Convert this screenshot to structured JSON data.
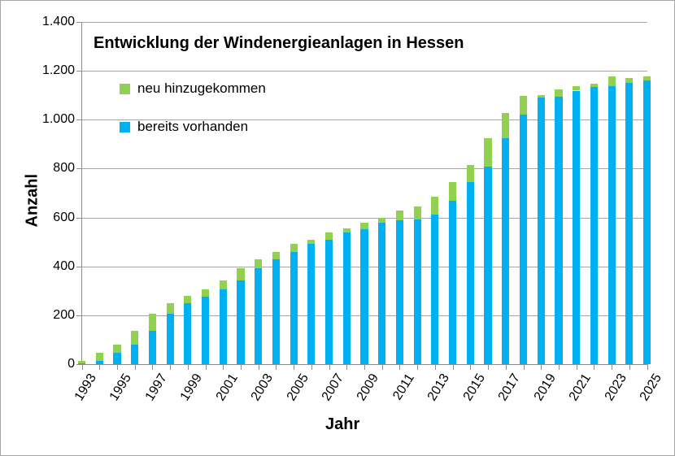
{
  "title": "Entwicklung der Windenergieanlagen in Hessen",
  "legend": [
    {
      "label": "neu hinzugekommen",
      "color": "#92D050"
    },
    {
      "label": "bereits vorhanden",
      "color": "#00B0F0"
    }
  ],
  "colors": {
    "grid": "#a6a6a6",
    "axis": "#8c8c8c",
    "text": "#000000",
    "frame_border": "#a6a6a6",
    "green": "#92D050",
    "blue": "#00B0F0"
  },
  "chart_data": {
    "type": "bar",
    "stacked": true,
    "title": "Entwicklung der Windenergieanlagen in Hessen",
    "xlabel": "Jahr",
    "ylabel": "Anzahl",
    "ylim": [
      0,
      1400
    ],
    "ytick_step": 200,
    "ytick_labels": [
      "0",
      "200",
      "400",
      "600",
      "800",
      "1.000",
      "1.200",
      "1.400"
    ],
    "grid": true,
    "legend_position": "upper-left-inside",
    "xtick_label_interval": 2,
    "categories": [
      1993,
      1994,
      1995,
      1996,
      1997,
      1998,
      1999,
      2000,
      2001,
      2002,
      2003,
      2004,
      2005,
      2006,
      2007,
      2008,
      2009,
      2010,
      2011,
      2012,
      2013,
      2014,
      2015,
      2016,
      2017,
      2018,
      2019,
      2020,
      2021,
      2022,
      2023,
      2024,
      2025
    ],
    "series": [
      {
        "name": "bereits vorhanden",
        "color": "#00B0F0",
        "values": [
          2,
          13,
          46,
          79,
          137,
          207,
          250,
          276,
          307,
          344,
          394,
          428,
          460,
          493,
          510,
          540,
          553,
          578,
          590,
          592,
          611,
          668,
          745,
          808,
          924,
          1020,
          1092,
          1093,
          1119,
          1134,
          1136,
          1151,
          1159
        ]
      },
      {
        "name": "neu hinzugekommen",
        "color": "#92D050",
        "values": [
          11,
          33,
          33,
          58,
          70,
          43,
          28,
          31,
          37,
          50,
          34,
          32,
          33,
          17,
          30,
          15,
          25,
          22,
          38,
          54,
          73,
          77,
          69,
          115,
          104,
          77,
          8,
          31,
          17,
          12,
          42,
          18,
          17
        ]
      }
    ]
  }
}
